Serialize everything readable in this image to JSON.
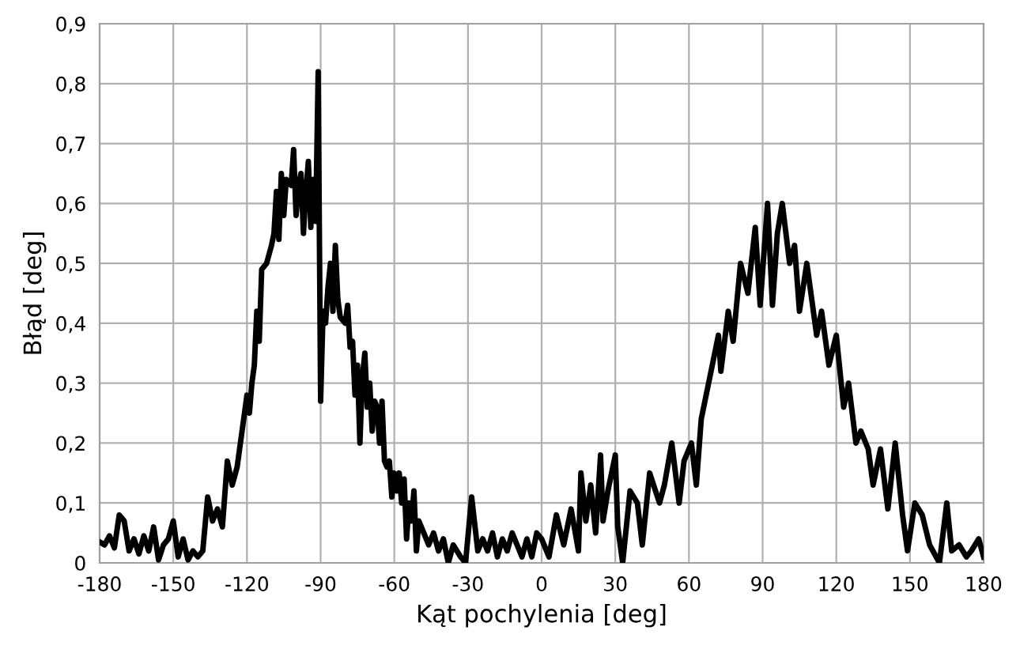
{
  "chart_data": {
    "type": "line",
    "xlabel": "Kąt pochylenia [deg]",
    "ylabel": "Błąd [deg]",
    "xlim": [
      -180,
      180
    ],
    "ylim": [
      0,
      0.9
    ],
    "xticks": [
      -180,
      -150,
      -120,
      -90,
      -60,
      -30,
      0,
      30,
      60,
      90,
      120,
      150,
      180
    ],
    "yticks": [
      0,
      {
        "value": 0.1,
        "label": "0,1"
      },
      {
        "value": 0.2,
        "label": "0,2"
      },
      {
        "value": 0.3,
        "label": "0,3"
      },
      {
        "value": 0.4,
        "label": "0,4"
      },
      {
        "value": 0.5,
        "label": "0,5"
      },
      {
        "value": 0.6,
        "label": "0,6"
      },
      {
        "value": 0.7,
        "label": "0,7"
      },
      {
        "value": 0.8,
        "label": "0,8"
      },
      {
        "value": 0.9,
        "label": "0,9"
      }
    ],
    "grid": true,
    "legend": false,
    "marker": "none",
    "line_style": "solid",
    "series": [
      {
        "color": "#000000",
        "x": [
          -180,
          -178,
          -176,
          -174,
          -172,
          -170,
          -168,
          -166,
          -164,
          -162,
          -160,
          -158,
          -156,
          -154,
          -152,
          -150,
          -148,
          -146,
          -144,
          -142,
          -140,
          -138,
          -136,
          -134,
          -132,
          -130,
          -128,
          -126,
          -124,
          -122,
          -120,
          -119,
          -118,
          -117,
          -116,
          -115,
          -114,
          -112,
          -110,
          -109,
          -108,
          -107,
          -106,
          -105,
          -104,
          -102,
          -101,
          -100,
          -99,
          -98,
          -97,
          -96,
          -95,
          -94,
          -93,
          -92,
          -91,
          -90,
          -89,
          -88,
          -87,
          -86,
          -85,
          -84,
          -83,
          -82,
          -80,
          -79,
          -78,
          -77,
          -76,
          -75,
          -74,
          -73,
          -72,
          -71,
          -70,
          -69,
          -68,
          -67,
          -66,
          -65,
          -64,
          -63,
          -62,
          -61,
          -60,
          -59,
          -58,
          -57,
          -56,
          -55,
          -54,
          -53,
          -52,
          -51,
          -50,
          -48,
          -46,
          -44,
          -42,
          -40,
          -38,
          -36,
          -33,
          -31,
          -28.5,
          -26,
          -24,
          -22,
          -20,
          -18,
          -16,
          -14,
          -12,
          -10,
          -8,
          -6,
          -4,
          -2,
          0,
          3,
          6,
          9,
          12,
          15,
          16,
          18,
          20,
          22,
          24,
          25,
          27,
          30,
          31,
          33,
          36,
          39,
          41,
          44,
          48,
          50,
          53,
          56,
          58,
          61,
          63,
          65,
          68,
          72,
          73,
          76,
          78,
          81,
          84,
          87,
          89,
          92,
          94,
          96,
          98,
          101,
          103,
          105,
          108,
          112,
          114,
          117,
          120,
          123,
          125,
          128,
          130,
          133,
          135,
          138,
          141,
          144,
          147,
          149,
          152,
          155,
          158,
          162,
          165,
          167,
          170,
          173,
          175,
          178,
          180
        ],
        "values": [
          0.035,
          0.03,
          0.045,
          0.025,
          0.08,
          0.07,
          0.02,
          0.04,
          0.015,
          0.045,
          0.02,
          0.06,
          0.005,
          0.03,
          0.04,
          0.07,
          0.01,
          0.04,
          0.005,
          0.02,
          0.01,
          0.02,
          0.11,
          0.07,
          0.09,
          0.06,
          0.17,
          0.13,
          0.16,
          0.22,
          0.28,
          0.25,
          0.3,
          0.33,
          0.42,
          0.37,
          0.49,
          0.5,
          0.53,
          0.55,
          0.62,
          0.54,
          0.65,
          0.58,
          0.64,
          0.63,
          0.69,
          0.58,
          0.63,
          0.65,
          0.55,
          0.62,
          0.67,
          0.56,
          0.64,
          0.57,
          0.82,
          0.27,
          0.42,
          0.4,
          0.46,
          0.5,
          0.42,
          0.53,
          0.44,
          0.41,
          0.4,
          0.43,
          0.36,
          0.37,
          0.28,
          0.33,
          0.2,
          0.31,
          0.35,
          0.26,
          0.3,
          0.22,
          0.27,
          0.26,
          0.2,
          0.27,
          0.17,
          0.16,
          0.17,
          0.11,
          0.15,
          0.12,
          0.15,
          0.1,
          0.14,
          0.04,
          0.1,
          0.07,
          0.12,
          0.02,
          0.07,
          0.05,
          0.03,
          0.05,
          0.02,
          0.04,
          0.0,
          0.03,
          0.01,
          0.0,
          0.11,
          0.02,
          0.04,
          0.02,
          0.05,
          0.01,
          0.04,
          0.02,
          0.05,
          0.03,
          0.01,
          0.04,
          0.01,
          0.05,
          0.04,
          0.01,
          0.08,
          0.03,
          0.09,
          0.02,
          0.15,
          0.07,
          0.13,
          0.05,
          0.18,
          0.07,
          0.12,
          0.18,
          0.06,
          0.0,
          0.12,
          0.1,
          0.03,
          0.15,
          0.1,
          0.13,
          0.2,
          0.1,
          0.17,
          0.2,
          0.13,
          0.24,
          0.3,
          0.38,
          0.32,
          0.42,
          0.37,
          0.5,
          0.45,
          0.56,
          0.43,
          0.6,
          0.43,
          0.55,
          0.6,
          0.5,
          0.53,
          0.42,
          0.5,
          0.38,
          0.42,
          0.33,
          0.38,
          0.26,
          0.3,
          0.2,
          0.22,
          0.19,
          0.13,
          0.19,
          0.09,
          0.2,
          0.08,
          0.02,
          0.1,
          0.08,
          0.03,
          0.0,
          0.1,
          0.02,
          0.03,
          0.01,
          0.02,
          0.04,
          0.01
        ]
      }
    ]
  }
}
